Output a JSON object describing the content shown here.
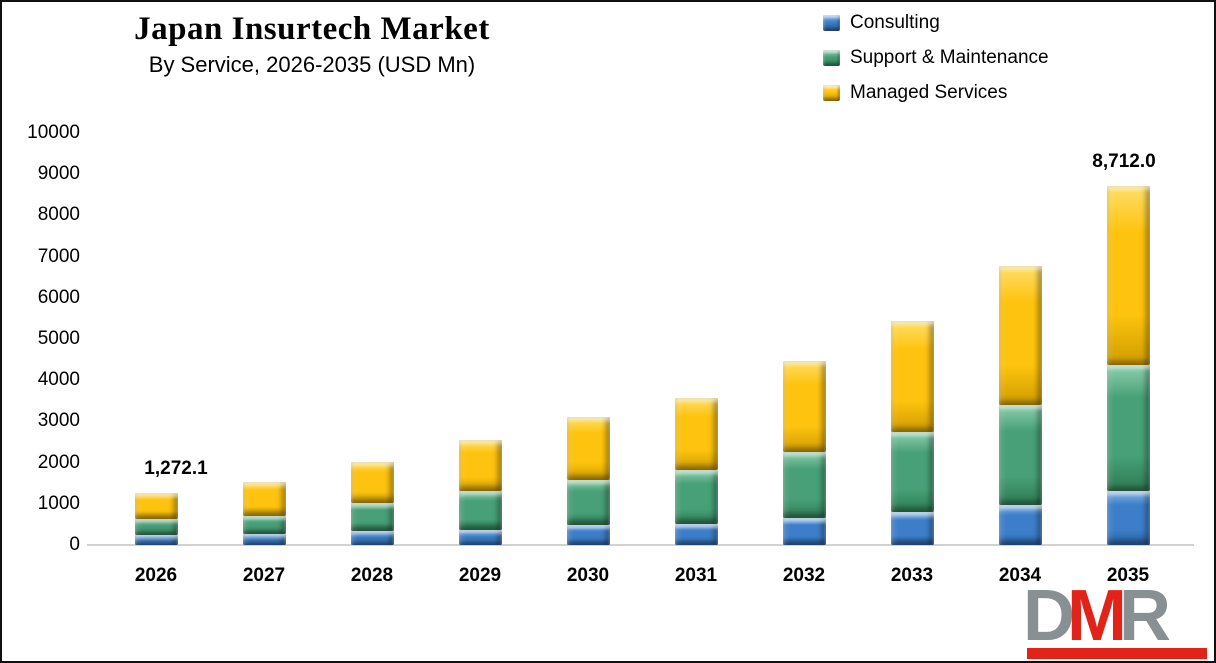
{
  "header": {
    "title": "Japan Insurtech Market",
    "subtitle": "By Service, 2026-2035 (USD Mn)"
  },
  "chart_data": {
    "type": "bar",
    "stacked": true,
    "title": "Japan Insurtech Market",
    "subtitle": "By Service, 2026-2035 (USD Mn)",
    "unit": "USD Mn",
    "categories": [
      "2026",
      "2027",
      "2028",
      "2029",
      "2030",
      "2031",
      "2032",
      "2033",
      "2034",
      "2035"
    ],
    "series": [
      {
        "name": "Consulting",
        "color": "#3C7EC9",
        "color_light": "#8AB9E6",
        "color_dark": "#285E9E",
        "values": [
          235,
          255,
          340,
          370,
          485,
          500,
          650,
          810,
          975,
          1310
        ]
      },
      {
        "name": "Support & Maintenance",
        "color": "#47A077",
        "color_light": "#8FD0AE",
        "color_dark": "#2D7A52",
        "values": [
          402,
          450,
          685,
          940,
          1085,
          1310,
          1615,
          1940,
          2420,
          3068
        ]
      },
      {
        "name": "Managed Services",
        "color": "#FDC30E",
        "color_light": "#FFDF68",
        "color_dark": "#CE9C00",
        "values": [
          635.1,
          815,
          985,
          1245,
          1530,
          1750,
          2205,
          2680,
          3375,
          4334
        ]
      }
    ],
    "totals": [
      1272.1,
      1520,
      2010,
      2555,
      3100,
      3560,
      4470,
      5430,
      6770,
      8712.0
    ],
    "annotations": [
      {
        "index": 0,
        "text": "1,272.1",
        "dx": 20
      },
      {
        "index": 9,
        "text": "8,712.0",
        "dx": -4
      }
    ],
    "ylim": [
      0,
      10000
    ],
    "ytick_step": 1000,
    "grid": false,
    "legend_position": "top-right",
    "axis_color": "#d2d2d2"
  },
  "logo": {
    "letters": [
      {
        "char": "D",
        "color": "#899093"
      },
      {
        "char": "M",
        "color": "#E2231A"
      },
      {
        "char": "R",
        "color": "#899093"
      }
    ],
    "bar_color": "#E2231A"
  }
}
